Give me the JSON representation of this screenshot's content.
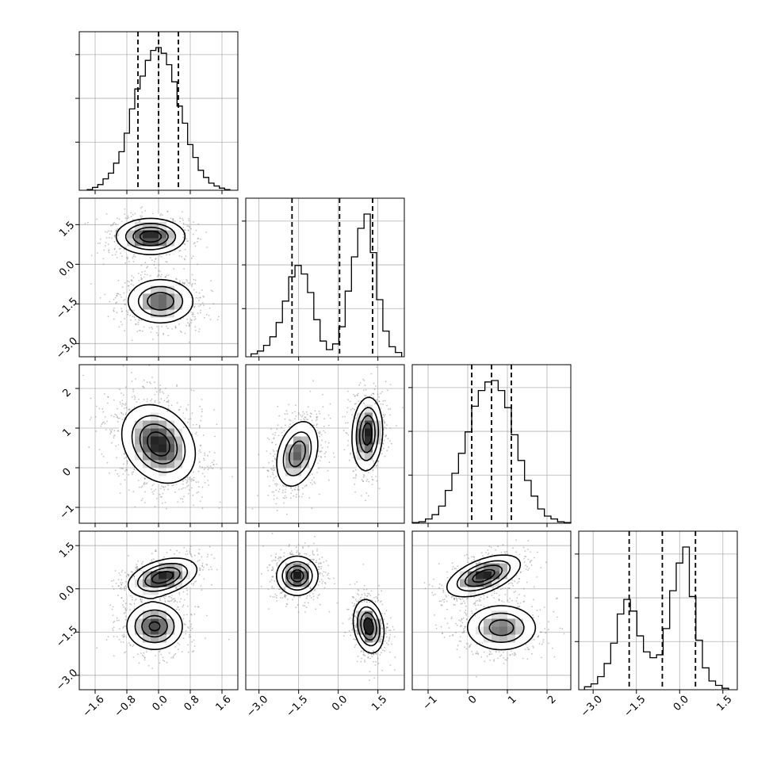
{
  "chart_data": {
    "type": "corner",
    "grid": true,
    "legend": "none",
    "parameters": [
      {
        "range": [
          -2.0,
          2.0
        ],
        "ticks": [
          -1.6,
          -0.8,
          0.0,
          0.8,
          1.6
        ],
        "tick_labels": [
          "−1.6",
          "−0.8",
          "0.0",
          "0.8",
          "1.6"
        ],
        "quantiles": [
          -0.52,
          0.0,
          0.5
        ],
        "hist_edges_range": [
          -1.8,
          1.8
        ],
        "hist_counts": [
          0.005,
          0.02,
          0.04,
          0.08,
          0.12,
          0.19,
          0.27,
          0.4,
          0.57,
          0.71,
          0.8,
          0.91,
          0.98,
          1.0,
          0.96,
          0.88,
          0.76,
          0.59,
          0.47,
          0.32,
          0.23,
          0.14,
          0.09,
          0.05,
          0.03,
          0.015,
          0.005
        ]
      },
      {
        "range": [
          -3.5,
          2.5
        ],
        "ticks": [
          -3.0,
          -1.5,
          0.0,
          1.5
        ],
        "tick_labels": [
          "−3.0",
          "−1.5",
          "0.0",
          "1.5"
        ],
        "quantiles": [
          -1.75,
          0.05,
          1.3
        ],
        "hist_edges_range": [
          -3.3,
          2.4
        ],
        "hist_counts": [
          0.02,
          0.04,
          0.08,
          0.14,
          0.24,
          0.39,
          0.56,
          0.64,
          0.58,
          0.45,
          0.26,
          0.11,
          0.05,
          0.09,
          0.21,
          0.46,
          0.7,
          0.9,
          1.0,
          0.73,
          0.4,
          0.18,
          0.07,
          0.03
        ]
      },
      {
        "range": [
          -1.4,
          2.6
        ],
        "ticks": [
          -1,
          0,
          1,
          2
        ],
        "tick_labels": [
          "−1",
          "0",
          "1",
          "2"
        ],
        "quantiles": [
          0.1,
          0.6,
          1.1
        ],
        "hist_edges_range": [
          -1.4,
          2.6
        ],
        "hist_counts": [
          0.005,
          0.01,
          0.03,
          0.06,
          0.12,
          0.23,
          0.35,
          0.49,
          0.64,
          0.82,
          0.93,
          0.99,
          1.0,
          0.93,
          0.81,
          0.62,
          0.44,
          0.3,
          0.19,
          0.1,
          0.05,
          0.03,
          0.01,
          0.005
        ]
      },
      {
        "range": [
          -3.5,
          2.0
        ],
        "ticks": [
          -3.0,
          -1.5,
          0.0,
          1.5
        ],
        "tick_labels": [
          "−3.0",
          "−1.5",
          "0.0",
          "1.5"
        ],
        "quantiles": [
          -1.75,
          -0.6,
          0.55
        ],
        "hist_edges_range": [
          -3.3,
          1.7
        ],
        "hist_counts": [
          0.02,
          0.04,
          0.09,
          0.18,
          0.32,
          0.52,
          0.62,
          0.54,
          0.37,
          0.26,
          0.22,
          0.24,
          0.42,
          0.68,
          0.87,
          0.98,
          0.64,
          0.34,
          0.15,
          0.06,
          0.03,
          0.01
        ]
      }
    ],
    "pairs": {
      "1-0": {
        "clusters": [
          {
            "center": [
              -0.2,
              1.05
            ],
            "sd": [
              0.42,
              0.33
            ],
            "rho": 0.0,
            "weight": 0.5
          },
          {
            "center": [
              0.05,
              -1.4
            ],
            "sd": [
              0.42,
              0.42
            ],
            "rho": 0.0,
            "weight": 0.5
          }
        ]
      },
      "2-0": {
        "clusters": [
          {
            "center": [
              0.0,
              0.6
            ],
            "sd": [
              0.45,
              0.48
            ],
            "rho": -0.25,
            "weight": 1.0
          }
        ]
      },
      "2-1": {
        "clusters": [
          {
            "center": [
              -1.55,
              0.35
            ],
            "sd": [
              0.4,
              0.42
            ],
            "rho": 0.3,
            "weight": 0.5
          },
          {
            "center": [
              1.1,
              0.85
            ],
            "sd": [
              0.28,
              0.45
            ],
            "rho": 0.1,
            "weight": 0.5
          }
        ]
      },
      "3-0": {
        "clusters": [
          {
            "center": [
              0.1,
              0.4
            ],
            "sd": [
              0.42,
              0.32
            ],
            "rho": 0.4,
            "weight": 0.5
          },
          {
            "center": [
              -0.1,
              -1.3
            ],
            "sd": [
              0.35,
              0.4
            ],
            "rho": 0.0,
            "weight": 0.5
          }
        ]
      },
      "3-1": {
        "clusters": [
          {
            "center": [
              -1.55,
              0.45
            ],
            "sd": [
              0.38,
              0.33
            ],
            "rho": 0.0,
            "weight": 0.5
          },
          {
            "center": [
              1.15,
              -1.3
            ],
            "sd": [
              0.28,
              0.45
            ],
            "rho": -0.2,
            "weight": 0.5
          }
        ]
      },
      "3-2": {
        "clusters": [
          {
            "center": [
              0.4,
              0.45
            ],
            "sd": [
              0.45,
              0.35
            ],
            "rho": 0.55,
            "weight": 0.5
          },
          {
            "center": [
              0.85,
              -1.35
            ],
            "sd": [
              0.45,
              0.4
            ],
            "rho": 0.0,
            "weight": 0.5
          }
        ]
      }
    },
    "contour_levels": [
      0.12,
      0.33,
      0.58,
      0.82
    ],
    "colors": {
      "line": "#000000",
      "grid": "#b0b0b0",
      "points": "#7a7a7a",
      "fill": "#ffffff"
    }
  }
}
